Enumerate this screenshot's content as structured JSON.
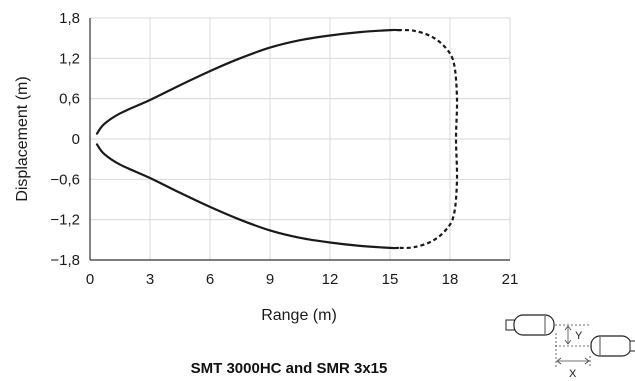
{
  "chart_data": {
    "type": "line",
    "title": "SMT 3000HC and SMR 3x15",
    "xlabel": "Range (m)",
    "ylabel": "Displacement (m)",
    "xlim": [
      0,
      21
    ],
    "ylim": [
      -1.8,
      1.8
    ],
    "x_ticks": [
      0,
      3,
      6,
      9,
      12,
      15,
      18,
      21
    ],
    "y_ticks": [
      1.8,
      1.2,
      0.6,
      0,
      -0.6,
      -1.2,
      -1.8
    ],
    "x_tick_labels": [
      "0",
      "3",
      "6",
      "9",
      "12",
      "15",
      "18",
      "21"
    ],
    "y_tick_labels": [
      "1,8",
      "1,2",
      "0,6",
      "0",
      "−0,6",
      "−1,2",
      "−1,8"
    ],
    "grid": true,
    "series": [
      {
        "style": "solid",
        "x": [
          0.35,
          0.7,
          1.5,
          3,
          4.5,
          6,
          7.5,
          9,
          10.5,
          12,
          13.5,
          15,
          15.4
        ],
        "y": [
          0.08,
          0.22,
          0.38,
          0.58,
          0.8,
          1.01,
          1.2,
          1.36,
          1.47,
          1.54,
          1.59,
          1.62,
          1.62
        ]
      },
      {
        "style": "solid",
        "x": [
          0.35,
          0.7,
          1.5,
          3,
          4.5,
          6,
          7.5,
          9,
          10.5,
          12,
          13.5,
          15,
          15.4
        ],
        "y": [
          -0.08,
          -0.22,
          -0.38,
          -0.58,
          -0.8,
          -1.01,
          -1.2,
          -1.36,
          -1.47,
          -1.54,
          -1.59,
          -1.62,
          -1.62
        ]
      },
      {
        "style": "dashed",
        "x": [
          15.4,
          16.2,
          17.1,
          17.8,
          18.2,
          18.35,
          18.3,
          18.35,
          18.2,
          17.8,
          17.1,
          16.2,
          15.4
        ],
        "y": [
          1.62,
          1.61,
          1.52,
          1.35,
          1.12,
          0.6,
          0,
          -0.6,
          -1.12,
          -1.35,
          -1.52,
          -1.61,
          -1.62
        ]
      }
    ],
    "inset": {
      "labels": [
        "Y",
        "X"
      ],
      "icons": [
        "transmitter-icon",
        "receiver-icon"
      ]
    }
  }
}
